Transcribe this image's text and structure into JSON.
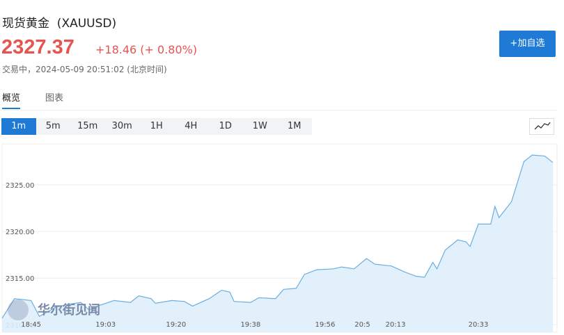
{
  "header": {
    "title": "现货黄金  (XAUUSD)",
    "price": "2327.37",
    "change": "+18.46 (+ 0.80%)",
    "status": "交易中，2024-05-09 20:51:02 (北京时间)",
    "button": "+加自选"
  },
  "tabs": [
    "概览",
    "图表"
  ],
  "intervals": [
    "1m",
    "5m",
    "15m",
    "30m",
    "1H",
    "4H",
    "1D",
    "1W",
    "1M"
  ],
  "watermark": "华尔街见闻",
  "chart_data": {
    "type": "area",
    "x": [
      "18:38",
      "18:41",
      "18:45",
      "18:47",
      "18:51",
      "18:54",
      "18:57",
      "18:59",
      "19:01",
      "19:05",
      "19:09",
      "19:11",
      "19:14",
      "19:15",
      "19:19",
      "19:22",
      "19:24",
      "19:28",
      "19:31",
      "19:33",
      "19:34",
      "19:38",
      "19:40",
      "19:44",
      "19:46",
      "19:49",
      "19:51",
      "19:54",
      "19:58",
      "20:00",
      "20:03",
      "20:06",
      "20:08",
      "20:12",
      "20:15",
      "20:18",
      "20:20",
      "20:22",
      "20:23",
      "20:25",
      "20:28",
      "20:30",
      "20:31",
      "20:33",
      "20:36",
      "20:37",
      "20:38",
      "20:41",
      "20:44",
      "20:46",
      "20:49",
      "20:51"
    ],
    "series": [
      {
        "color": "#6aaee0",
        "values": [
          2310.7,
          2312.8,
          2312.6,
          2310.9,
          2311.9,
          2312.2,
          2312.4,
          2311.6,
          2312.0,
          2312.6,
          2312.4,
          2313.1,
          2312.8,
          2312.3,
          2312.6,
          2312.5,
          2312.0,
          2312.8,
          2313.7,
          2313.5,
          2312.5,
          2312.4,
          2312.9,
          2312.8,
          2313.8,
          2313.9,
          2315.4,
          2315.9,
          2316.0,
          2316.2,
          2316.0,
          2317.1,
          2316.5,
          2316.3,
          2315.7,
          2315.2,
          2315.1,
          2316.7,
          2316.0,
          2318.0,
          2319.1,
          2318.9,
          2318.4,
          2320.8,
          2320.8,
          2322.7,
          2321.5,
          2323.2,
          2327.5,
          2328.2,
          2328.1,
          2327.4
        ]
      }
    ],
    "xlim": [
      "18:38",
      "20:52"
    ],
    "xticks": [
      "18:45",
      "19:03",
      "19:20",
      "19:38",
      "19:56",
      "20:13",
      "20:33",
      "20:5"
    ],
    "ylim": [
      2309.2,
      2329.4
    ],
    "yticks": [
      {
        "value": 2325,
        "label": "2325.00"
      },
      {
        "value": 2320,
        "label": "2320.00"
      },
      {
        "value": 2315,
        "label": "2315.00"
      },
      {
        "value": 2310,
        "label": "2310.00"
      }
    ],
    "grid": true
  }
}
